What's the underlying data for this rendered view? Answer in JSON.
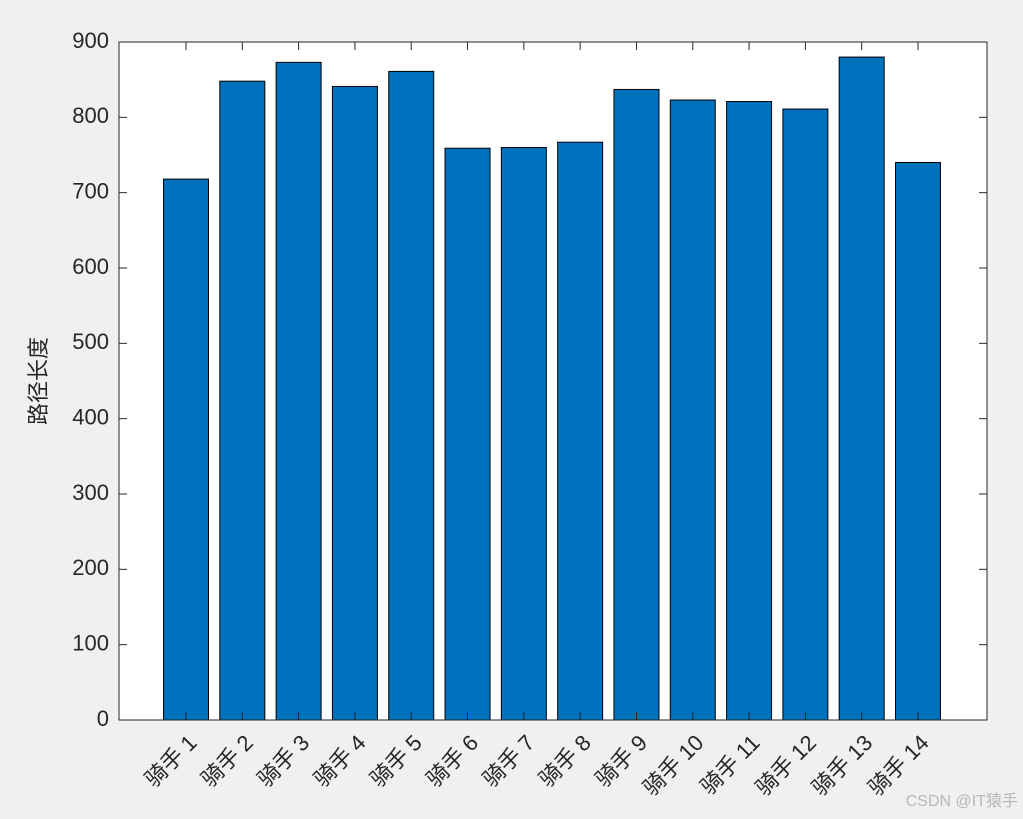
{
  "chart_data": {
    "type": "bar",
    "y_label": "路径长度",
    "categories": [
      "骑手 1",
      "骑手 2",
      "骑手 3",
      "骑手 4",
      "骑手 5",
      "骑手 6",
      "骑手 7",
      "骑手 8",
      "骑手 9",
      "骑手 10",
      "骑手 11",
      "骑手 12",
      "骑手 13",
      "骑手 14"
    ],
    "values": [
      718,
      848,
      873,
      841,
      861,
      759,
      760,
      767,
      837,
      823,
      821,
      811,
      880,
      740
    ],
    "color": "#0072bd",
    "ylim": [
      0,
      900
    ],
    "yticks": [
      0,
      100,
      200,
      300,
      400,
      500,
      600,
      700,
      800,
      900
    ],
    "grid": false
  },
  "watermark": "CSDN @IT猿手"
}
